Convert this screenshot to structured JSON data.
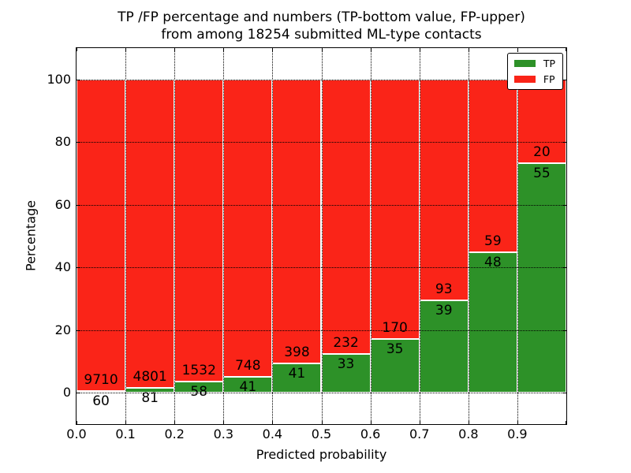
{
  "title_line1": "TP /FP percentage and numbers (TP-bottom value, FP-upper)",
  "title_line2": "from among 18254 submitted ML-type contacts",
  "total_contacts": 18254,
  "colors": {
    "tp": "#2d9128",
    "fp": "#fa2418",
    "bar_edge": "#ffffff",
    "grid": "#000000"
  },
  "chart_data": {
    "type": "bar",
    "stacked": true,
    "normalized_to_percent": true,
    "title": "TP /FP percentage and numbers (TP-bottom value, FP-upper) from among 18254 submitted ML-type contacts",
    "xlabel": "Predicted probability",
    "ylabel": "Percentage",
    "bin_starts": [
      0.0,
      0.1,
      0.2,
      0.3,
      0.4,
      0.5,
      0.6,
      0.7,
      0.8,
      0.9
    ],
    "bin_width": 0.1,
    "series": [
      {
        "name": "TP",
        "color": "#2d9128",
        "counts": [
          60,
          81,
          58,
          41,
          41,
          33,
          35,
          39,
          48,
          55
        ]
      },
      {
        "name": "FP",
        "color": "#fa2418",
        "counts": [
          9710,
          4801,
          1532,
          748,
          398,
          232,
          170,
          93,
          59,
          20
        ]
      }
    ],
    "tp_percent": [
      0.61,
      1.66,
      3.65,
      5.2,
      9.34,
      12.45,
      17.07,
      29.55,
      44.86,
      73.33
    ],
    "fp_percent": [
      99.39,
      98.34,
      96.35,
      94.8,
      90.66,
      87.55,
      82.93,
      70.45,
      55.14,
      26.67
    ],
    "xticks": [
      "0.0",
      "0.1",
      "0.2",
      "0.3",
      "0.4",
      "0.5",
      "0.6",
      "0.7",
      "0.8",
      "0.9"
    ],
    "yticks": [
      0,
      20,
      40,
      60,
      80,
      100
    ],
    "xlim": [
      0,
      1.0
    ],
    "ylim": [
      -10,
      110
    ],
    "grid": "dotted",
    "legend": {
      "position": "upper right",
      "entries": [
        {
          "label": "TP",
          "color": "#2d9128"
        },
        {
          "label": "FP",
          "color": "#fa2418"
        }
      ]
    }
  }
}
